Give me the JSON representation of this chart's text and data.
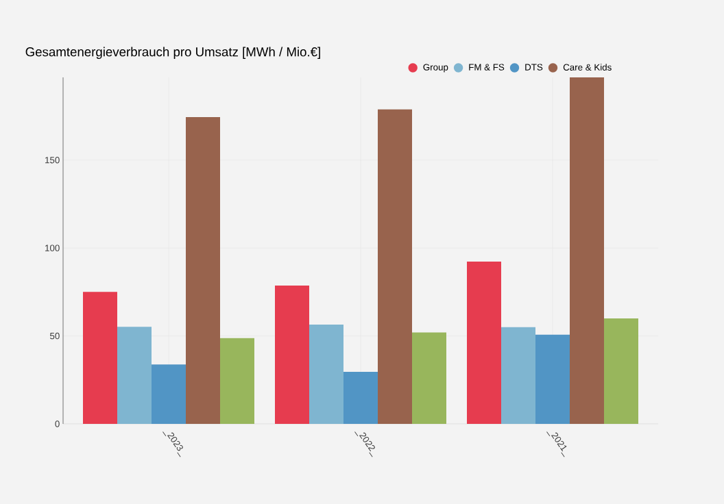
{
  "chart_data": {
    "type": "bar",
    "title": "Gesamtenergieverbrauch pro Umsatz [MWh / Mio.€]",
    "categories": [
      "_2023_",
      "_2022_",
      "_2021_"
    ],
    "series": [
      {
        "name": "Group",
        "color": "#e63c4f",
        "values": [
          75,
          78.6,
          92.3
        ]
      },
      {
        "name": "FM & FS",
        "color": "#7fb5d0",
        "values": [
          55.2,
          56.5,
          55
        ]
      },
      {
        "name": "DTS",
        "color": "#5195c5",
        "values": [
          33.8,
          29.6,
          50.7
        ]
      },
      {
        "name": "Care & Kids",
        "color": "#98634d",
        "values": [
          174.4,
          178.8,
          197
        ]
      },
      {
        "color": "#98b65c",
        "values": [
          48.8,
          52,
          60
        ]
      }
    ],
    "ylim": [
      0,
      197
    ],
    "yticks": [
      0,
      50,
      100,
      150
    ],
    "grid": true,
    "legend": "top right"
  }
}
